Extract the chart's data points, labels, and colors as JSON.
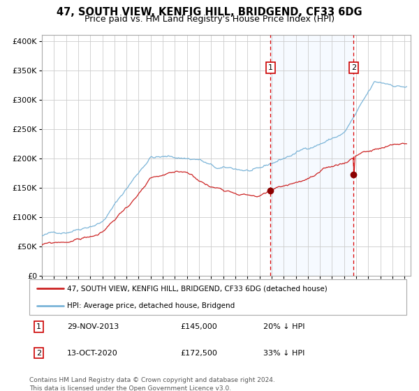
{
  "title": "47, SOUTH VIEW, KENFIG HILL, BRIDGEND, CF33 6DG",
  "subtitle": "Price paid vs. HM Land Registry's House Price Index (HPI)",
  "title_fontsize": 10.5,
  "subtitle_fontsize": 9,
  "hpi_color": "#7ab4d8",
  "price_color": "#cc2222",
  "background_color": "#ffffff",
  "plot_bg_color": "#ffffff",
  "shaded_region_color": "#ddeeff",
  "grid_color": "#cccccc",
  "ylim": [
    0,
    410000
  ],
  "yticks": [
    0,
    50000,
    100000,
    150000,
    200000,
    250000,
    300000,
    350000,
    400000
  ],
  "ytick_labels": [
    "£0",
    "£50K",
    "£100K",
    "£150K",
    "£200K",
    "£250K",
    "£300K",
    "£350K",
    "£400K"
  ],
  "x_start_year": 1995,
  "x_end_year": 2025,
  "sale1_date": 2013.91,
  "sale1_price": 145000,
  "sale2_date": 2020.79,
  "sale2_price": 172500,
  "legend_entry1": "47, SOUTH VIEW, KENFIG HILL, BRIDGEND, CF33 6DG (detached house)",
  "legend_entry2": "HPI: Average price, detached house, Bridgend",
  "table_row1_num": "1",
  "table_row1_date": "29-NOV-2013",
  "table_row1_price": "£145,000",
  "table_row1_hpi": "20% ↓ HPI",
  "table_row2_num": "2",
  "table_row2_date": "13-OCT-2020",
  "table_row2_price": "£172,500",
  "table_row2_hpi": "33% ↓ HPI",
  "footer": "Contains HM Land Registry data © Crown copyright and database right 2024.\nThis data is licensed under the Open Government Licence v3.0.",
  "marker_color": "#8b0000",
  "dashed_line_color": "#dd0000"
}
